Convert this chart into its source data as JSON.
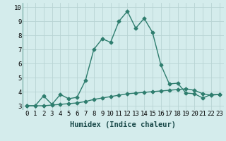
{
  "xlabel": "Humidex (Indice chaleur)",
  "x_line1": [
    0,
    1,
    2,
    3,
    4,
    5,
    6,
    7,
    8,
    9,
    10,
    11,
    12,
    13,
    14,
    15,
    16,
    17,
    18,
    19,
    20,
    21,
    22,
    23
  ],
  "y_line1": [
    3.0,
    3.0,
    3.7,
    3.1,
    3.8,
    3.5,
    3.6,
    4.8,
    7.0,
    7.75,
    7.5,
    9.0,
    9.7,
    8.5,
    9.2,
    8.2,
    5.9,
    4.55,
    4.6,
    3.9,
    3.85,
    3.55,
    3.8,
    3.8
  ],
  "x_line2": [
    0,
    1,
    2,
    3,
    4,
    5,
    6,
    7,
    8,
    9,
    10,
    11,
    12,
    13,
    14,
    15,
    16,
    17,
    18,
    19,
    20,
    21,
    22,
    23
  ],
  "y_line2": [
    3.0,
    3.0,
    3.0,
    3.05,
    3.1,
    3.15,
    3.2,
    3.3,
    3.45,
    3.55,
    3.65,
    3.75,
    3.85,
    3.9,
    3.95,
    4.0,
    4.05,
    4.1,
    4.15,
    4.2,
    4.1,
    3.85,
    3.75,
    3.8
  ],
  "line_color": "#2e7d6e",
  "bg_color": "#d4ecec",
  "grid_color": "#b8d4d4",
  "ylim": [
    2.7,
    10.3
  ],
  "xlim": [
    -0.5,
    23.5
  ],
  "yticks": [
    3,
    4,
    5,
    6,
    7,
    8,
    9,
    10
  ],
  "xtick_labels": [
    "0",
    "1",
    "2",
    "3",
    "4",
    "5",
    "6",
    "7",
    "8",
    "9",
    "10",
    "11",
    "12",
    "13",
    "14",
    "15",
    "16",
    "17",
    "18",
    "19",
    "20",
    "21",
    "22",
    "23"
  ],
  "marker": "D",
  "markersize": 2.5,
  "linewidth": 1.0,
  "xlabel_fontsize": 7.5,
  "tick_fontsize": 6.5
}
